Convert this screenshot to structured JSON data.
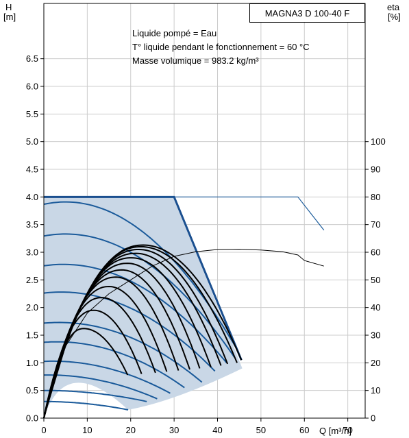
{
  "chart_data": {
    "type": "line",
    "model": "MAGNA3 D 100-40 F",
    "conditions": [
      "Liquide pompé = Eau",
      "T° liquide pendant le fonctionnement = 60 °C",
      "Masse volumique = 983.2 kg/m³"
    ],
    "left_axis": {
      "label_line1": "H",
      "label_line2": "[m]",
      "min": 0,
      "max": 7.5,
      "tick_labels": [
        "0.0",
        "0.5",
        "1.0",
        "1.5",
        "2.0",
        "2.5",
        "3.0",
        "3.5",
        "4.0",
        "4.5",
        "5.0",
        "5.5",
        "6.0",
        "6.5"
      ]
    },
    "right_axis": {
      "label_line1": "eta",
      "label_line2": "[%]",
      "min": 0,
      "max": 150,
      "tick_labels": [
        "0",
        "10",
        "20",
        "30",
        "40",
        "50",
        "60",
        "70",
        "80",
        "90",
        "100"
      ]
    },
    "x_axis": {
      "label": "Q [m³/h]",
      "min": 0,
      "max": 74,
      "tick_labels": [
        "0",
        "10",
        "20",
        "30",
        "40",
        "50",
        "60",
        "70"
      ]
    },
    "grid": true,
    "colors": {
      "pump": "#1a5a9a",
      "pump_max": "#1a4f8f",
      "operating_area": "#c9d7e6",
      "system": "#000000",
      "efficiency": "#000000"
    },
    "operating_area_outline": [
      [
        0,
        4.0
      ],
      [
        30,
        4.0
      ],
      [
        45.7,
        0.9
      ],
      [
        19.4,
        0.15
      ],
      [
        0,
        0
      ]
    ],
    "max_curve": [
      [
        0,
        4.0
      ],
      [
        30,
        4.0
      ],
      [
        45.5,
        1.05
      ]
    ],
    "pump_curves": [
      {
        "h0": 3.88,
        "apex_q": 5,
        "end": [
          44.8,
          1.2
        ]
      },
      {
        "h0": 3.3,
        "apex_q": 5,
        "end": [
          43.9,
          1.1
        ]
      },
      {
        "h0": 2.75,
        "apex_q": 4.5,
        "end": [
          42.1,
          1.0
        ]
      },
      {
        "h0": 2.25,
        "apex_q": 4,
        "end": [
          39.4,
          0.85
        ]
      },
      {
        "h0": 1.7,
        "apex_q": 3.5,
        "end": [
          36.4,
          0.65
        ]
      },
      {
        "h0": 1.35,
        "apex_q": 3,
        "end": [
          32.4,
          0.55
        ]
      },
      {
        "h0": 1.0,
        "apex_q": 2,
        "end": [
          29.1,
          0.45
        ]
      },
      {
        "h0": 0.75,
        "apex_q": 1,
        "end": [
          26.1,
          0.35
        ]
      },
      {
        "h0": 0.5,
        "apex_q": 0,
        "end": [
          23.7,
          0.3
        ]
      },
      {
        "h0": 0.3,
        "apex_q": 0,
        "end": [
          19.4,
          0.15
        ]
      }
    ],
    "system_curves": [
      {
        "apex": [
          22.9,
          3.13
        ],
        "end": [
          45.5,
          1.05
        ]
      },
      {
        "apex": [
          22.4,
          3.1
        ],
        "end": [
          44.5,
          1.0
        ]
      },
      {
        "apex": [
          21.9,
          3.05
        ],
        "end": [
          42.3,
          0.98
        ]
      },
      {
        "apex": [
          21.2,
          2.98
        ],
        "end": [
          40.8,
          0.95
        ]
      },
      {
        "apex": [
          20.2,
          2.9
        ],
        "end": [
          38.5,
          0.92
        ]
      },
      {
        "apex": [
          19.3,
          2.8
        ],
        "end": [
          35.9,
          0.9
        ]
      },
      {
        "apex": [
          18.0,
          2.68
        ],
        "end": [
          33.6,
          0.88
        ]
      },
      {
        "apex": [
          16.6,
          2.55
        ],
        "end": [
          31.0,
          0.86
        ]
      },
      {
        "apex": [
          15.0,
          2.38
        ],
        "end": [
          28.3,
          0.84
        ]
      },
      {
        "apex": [
          13.3,
          2.18
        ],
        "end": [
          25.7,
          0.82
        ]
      },
      {
        "apex": [
          11.5,
          1.95
        ],
        "end": [
          22.5,
          0.8
        ]
      },
      {
        "apex": [
          9.2,
          1.62
        ],
        "end": [
          19.3,
          0.78
        ]
      }
    ],
    "efficiency_curve": [
      [
        0,
        0
      ],
      [
        5,
        26
      ],
      [
        10,
        38
      ],
      [
        15,
        45
      ],
      [
        20,
        50
      ],
      [
        25,
        55
      ],
      [
        30,
        58.5
      ],
      [
        35,
        60.2
      ],
      [
        40,
        61
      ],
      [
        45,
        61.1
      ],
      [
        50,
        60.8
      ],
      [
        55,
        60.2
      ],
      [
        58.5,
        59
      ],
      [
        60,
        57
      ],
      [
        64.5,
        55
      ]
    ],
    "max_efficiency_curve": [
      [
        20,
        80
      ],
      [
        58.5,
        80
      ],
      [
        64.5,
        68
      ]
    ]
  }
}
